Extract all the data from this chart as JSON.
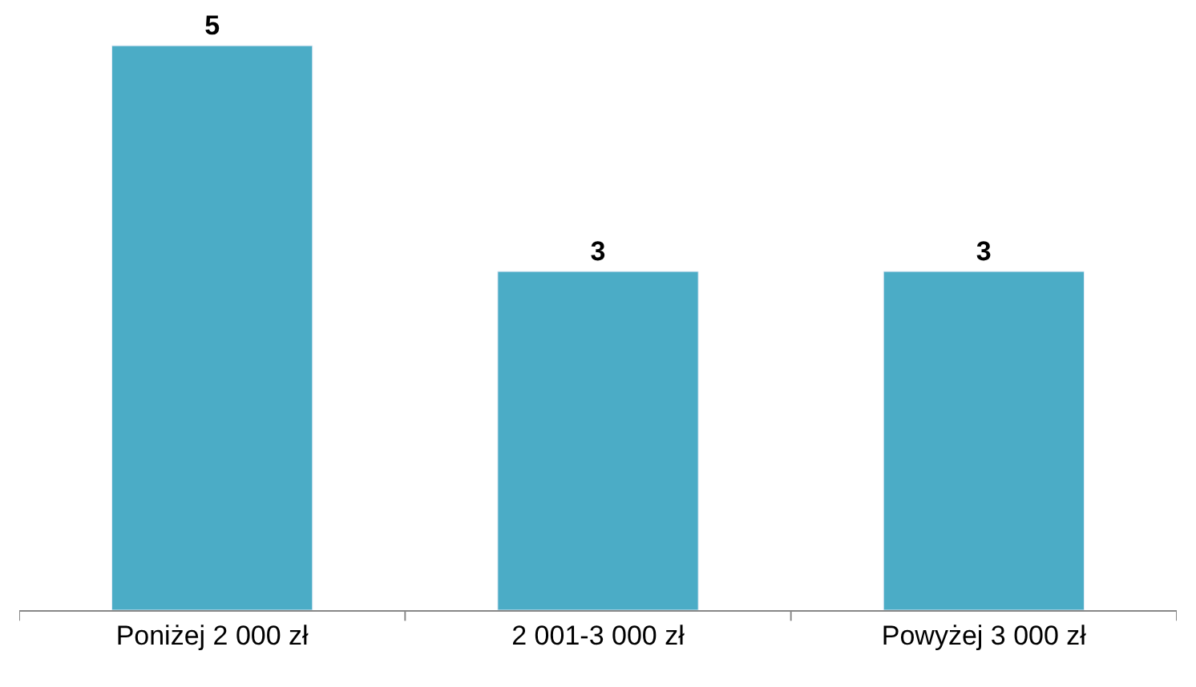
{
  "chart_data": {
    "type": "bar",
    "categories": [
      "Poniżej 2 000 zł",
      "2 001-3 000 zł",
      "Powyżej 3 000 zł"
    ],
    "values": [
      5,
      3,
      3
    ],
    "color": "#4bacc6",
    "data_labels": true,
    "tick_labels": "x"
  }
}
